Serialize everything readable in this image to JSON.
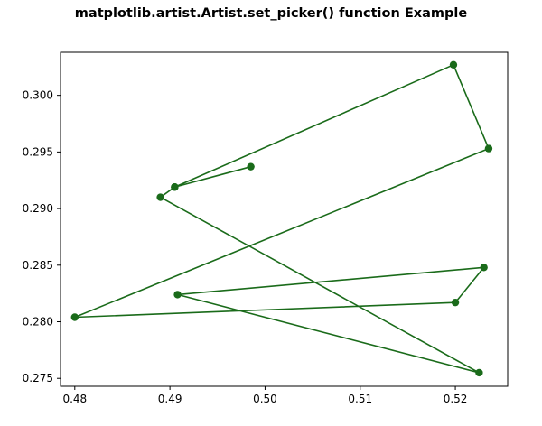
{
  "chart_data": {
    "type": "line",
    "title": "matplotlib.artist.Artist.set_picker() function Example",
    "xlabel": "",
    "ylabel": "",
    "xlim": [
      0.4785,
      0.5255
    ],
    "ylim": [
      0.2743,
      0.3038
    ],
    "x_ticks": [
      0.48,
      0.49,
      0.5,
      0.51,
      0.52
    ],
    "x_tick_labels": [
      "0.48",
      "0.49",
      "0.50",
      "0.51",
      "0.52"
    ],
    "y_ticks": [
      0.275,
      0.28,
      0.285,
      0.29,
      0.295,
      0.3
    ],
    "y_tick_labels": [
      "0.275",
      "0.280",
      "0.285",
      "0.290",
      "0.295",
      "0.300"
    ],
    "grid": false,
    "series": [
      {
        "color": "#1a6b1a",
        "marker": "circle",
        "x": [
          0.4985,
          0.4905,
          0.5198,
          0.5235,
          0.48,
          0.52,
          0.523,
          0.4908,
          0.5225,
          0.489,
          0.4905
        ],
        "y": [
          0.2937,
          0.2919,
          0.3027,
          0.2953,
          0.2804,
          0.2817,
          0.2848,
          0.2824,
          0.2755,
          0.291,
          0.2919
        ]
      }
    ]
  }
}
